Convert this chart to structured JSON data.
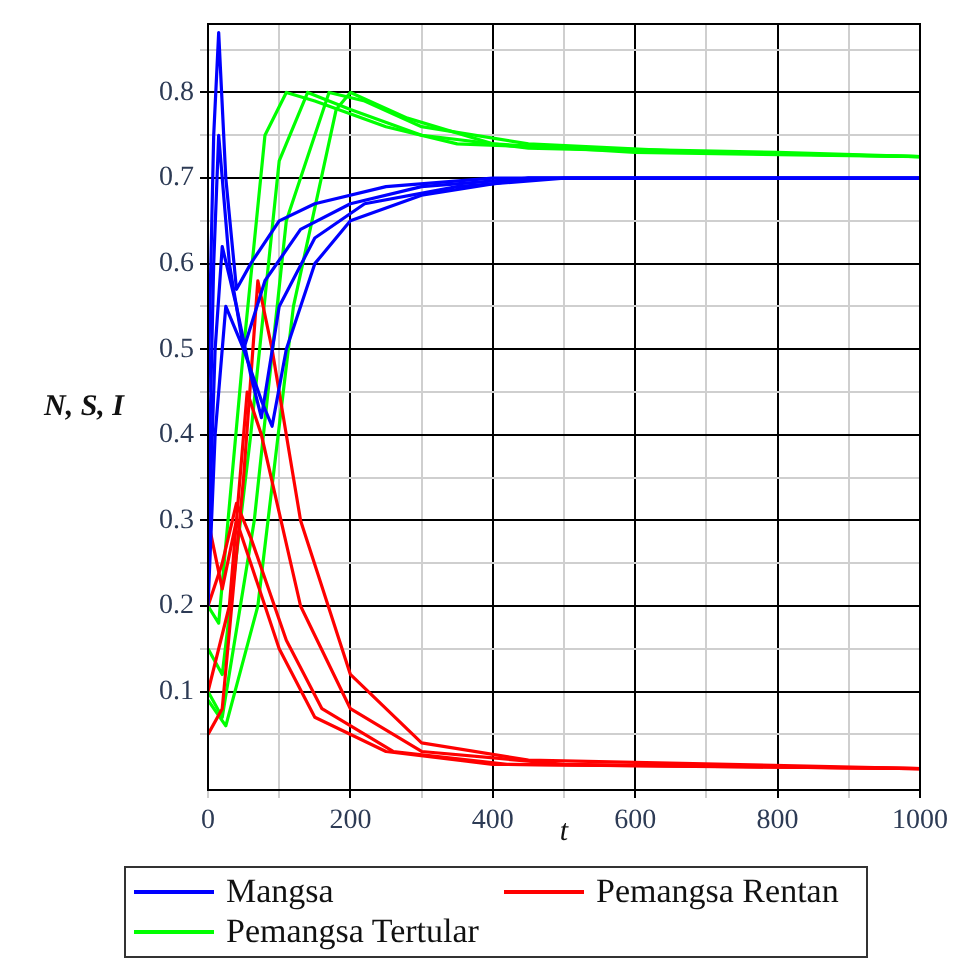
{
  "chart_data": {
    "type": "line",
    "xlabel": "t",
    "ylabel": "N, S, I",
    "xlim": [
      0,
      1000
    ],
    "ylim": [
      -0.015,
      0.88
    ],
    "xticks": [
      0,
      {
        "value": 100,
        "label": null
      },
      200,
      {
        "value": 300,
        "label": null
      },
      400,
      {
        "value": 500,
        "label": null
      },
      600,
      {
        "value": 700,
        "label": null
      },
      800,
      {
        "value": 900,
        "label": null
      },
      1000
    ],
    "yticks": [
      {
        "value": 0.05,
        "label": null
      },
      0.1,
      {
        "value": 0.15,
        "label": null
      },
      0.2,
      {
        "value": 0.25,
        "label": null
      },
      0.3,
      {
        "value": 0.35,
        "label": null
      },
      0.4,
      {
        "value": 0.45,
        "label": null
      },
      0.5,
      {
        "value": 0.55,
        "label": null
      },
      0.6,
      {
        "value": 0.65,
        "label": null
      },
      0.7,
      {
        "value": 0.75,
        "label": null
      },
      0.8,
      {
        "value": 0.85,
        "label": null
      }
    ],
    "grid": true,
    "legend": "bottom",
    "marker": "none",
    "line_style": "solid",
    "series": [
      {
        "name": "Mangsa",
        "color": "#0000ff",
        "x": [
          0,
          8,
          15,
          25,
          40,
          60,
          100,
          150,
          250,
          400,
          600,
          1000
        ],
        "values": [
          0.45,
          0.75,
          0.87,
          0.7,
          0.57,
          0.6,
          0.65,
          0.67,
          0.69,
          0.7,
          0.7,
          0.7
        ]
      },
      {
        "color": "#0000ff",
        "x": [
          0,
          8,
          15,
          30,
          50,
          80,
          130,
          200,
          300,
          450,
          1000
        ],
        "values": [
          0.3,
          0.6,
          0.75,
          0.6,
          0.5,
          0.58,
          0.64,
          0.67,
          0.69,
          0.7,
          0.7
        ]
      },
      {
        "color": "#0000ff",
        "x": [
          0,
          10,
          20,
          40,
          60,
          75,
          100,
          150,
          220,
          350,
          500,
          1000
        ],
        "values": [
          0.25,
          0.5,
          0.62,
          0.55,
          0.47,
          0.42,
          0.55,
          0.63,
          0.67,
          0.69,
          0.7,
          0.7
        ]
      },
      {
        "color": "#0000ff",
        "x": [
          0,
          10,
          25,
          50,
          75,
          90,
          110,
          150,
          200,
          300,
          450,
          1000
        ],
        "values": [
          0.2,
          0.4,
          0.55,
          0.5,
          0.44,
          0.41,
          0.5,
          0.6,
          0.65,
          0.68,
          0.7,
          0.7
        ]
      },
      {
        "name": "Pemangsa Rentan",
        "color": "#ff0000",
        "x": [
          0,
          20,
          40,
          60,
          100,
          150,
          250,
          400,
          1000
        ],
        "values": [
          0.3,
          0.22,
          0.3,
          0.25,
          0.15,
          0.07,
          0.03,
          0.015,
          0.01
        ]
      },
      {
        "color": "#ff0000",
        "x": [
          0,
          20,
          40,
          60,
          110,
          160,
          260,
          420,
          1000
        ],
        "values": [
          0.2,
          0.25,
          0.32,
          0.28,
          0.16,
          0.08,
          0.03,
          0.015,
          0.01
        ]
      },
      {
        "color": "#ff0000",
        "x": [
          0,
          30,
          55,
          75,
          130,
          200,
          300,
          500,
          1000
        ],
        "values": [
          0.1,
          0.2,
          0.45,
          0.4,
          0.2,
          0.08,
          0.03,
          0.015,
          0.01
        ]
      },
      {
        "color": "#ff0000",
        "x": [
          0,
          20,
          50,
          70,
          90,
          130,
          200,
          300,
          450,
          1000
        ],
        "values": [
          0.05,
          0.08,
          0.35,
          0.58,
          0.5,
          0.3,
          0.12,
          0.04,
          0.02,
          0.01
        ]
      },
      {
        "name": "Pemangsa Tertular",
        "color": "#00ff00",
        "x": [
          0,
          15,
          50,
          80,
          110,
          150,
          250,
          350,
          500,
          800,
          1000
        ],
        "values": [
          0.2,
          0.18,
          0.5,
          0.75,
          0.8,
          0.79,
          0.76,
          0.74,
          0.735,
          0.73,
          0.725
        ]
      },
      {
        "color": "#00ff00",
        "x": [
          0,
          20,
          60,
          100,
          140,
          200,
          300,
          450,
          700,
          1000
        ],
        "values": [
          0.15,
          0.12,
          0.4,
          0.72,
          0.8,
          0.78,
          0.75,
          0.735,
          0.73,
          0.725
        ]
      },
      {
        "color": "#00ff00",
        "x": [
          0,
          20,
          65,
          110,
          170,
          220,
          300,
          450,
          700,
          1000
        ],
        "values": [
          0.1,
          0.07,
          0.3,
          0.65,
          0.8,
          0.79,
          0.76,
          0.74,
          0.73,
          0.725
        ]
      },
      {
        "color": "#00ff00",
        "x": [
          0,
          25,
          70,
          120,
          180,
          200,
          280,
          400,
          600,
          1000
        ],
        "values": [
          0.09,
          0.06,
          0.2,
          0.55,
          0.78,
          0.8,
          0.77,
          0.74,
          0.73,
          0.725
        ]
      }
    ]
  }
}
